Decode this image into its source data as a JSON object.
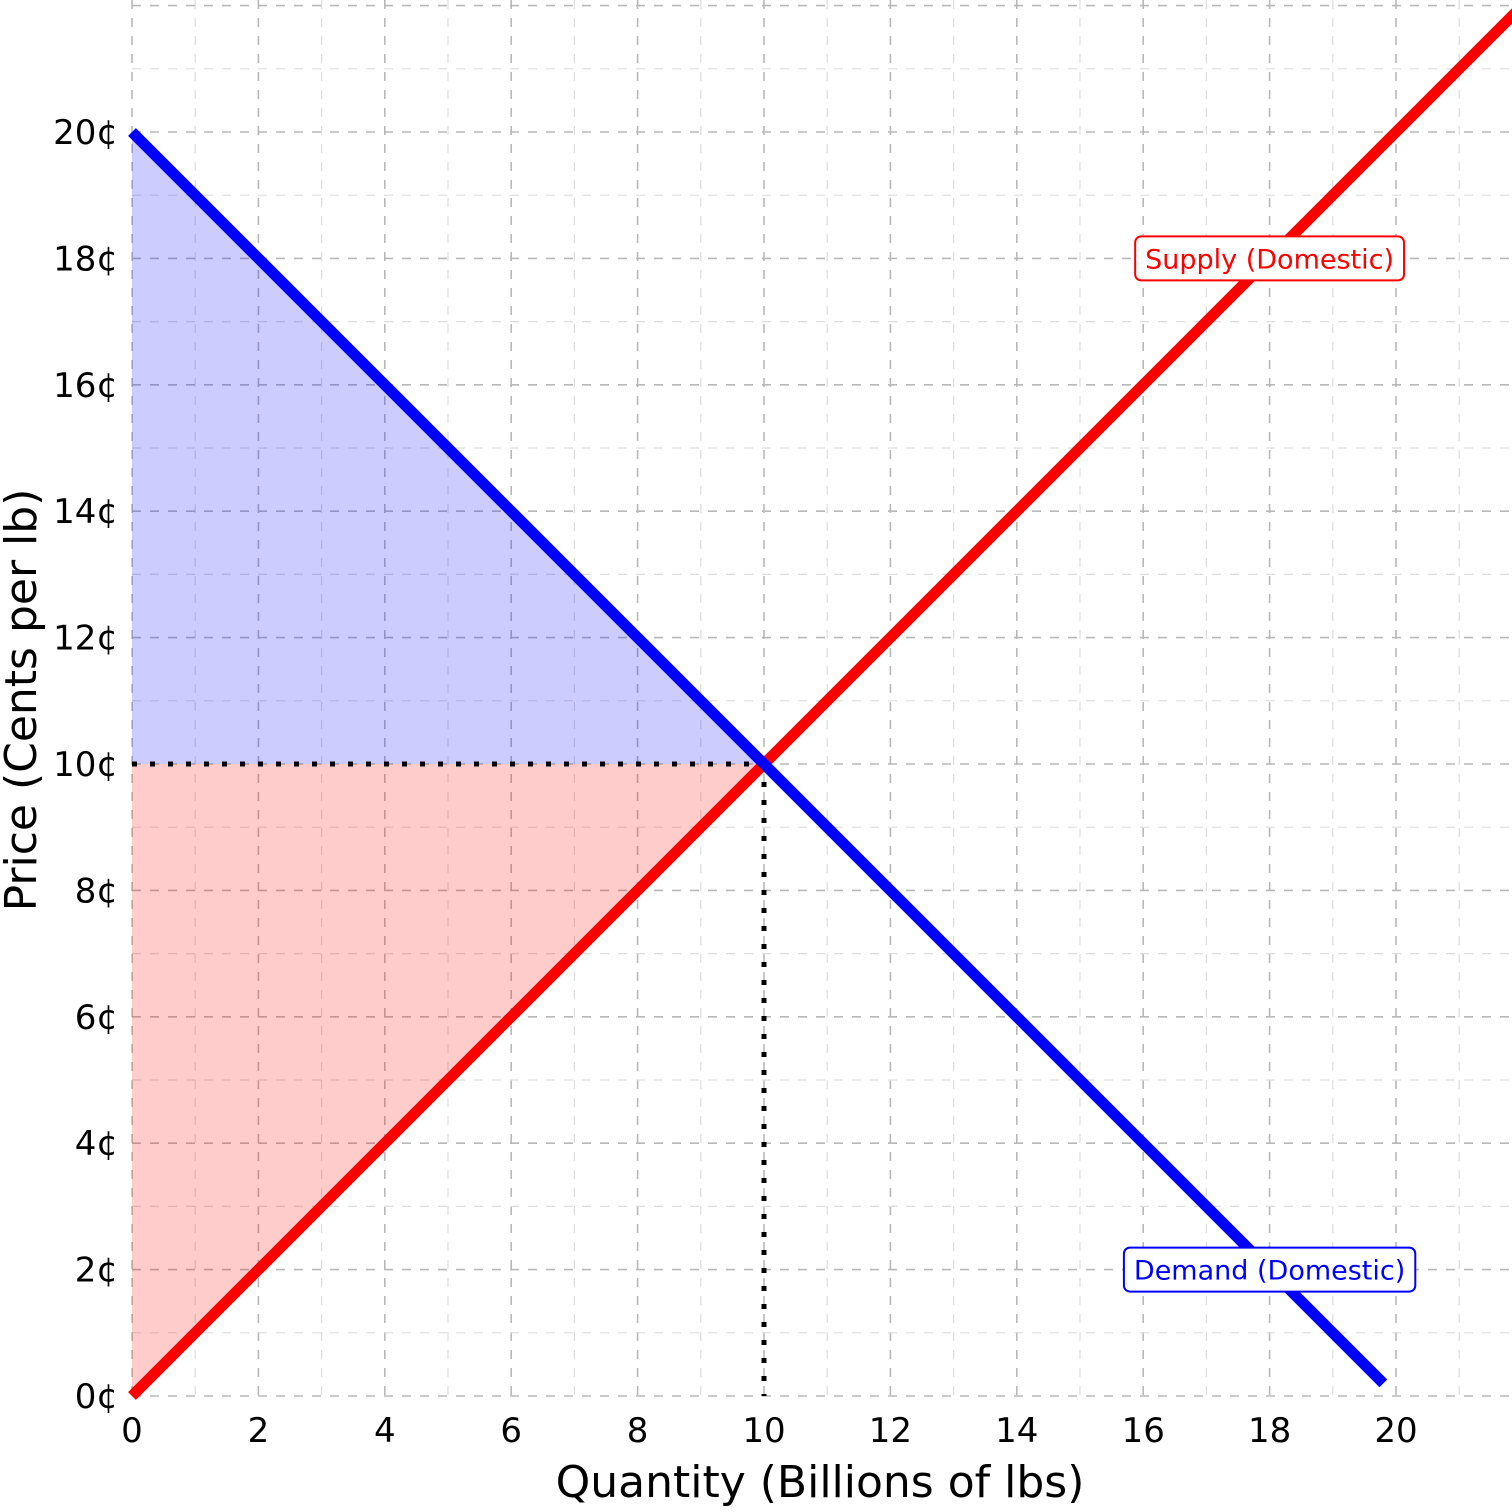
{
  "chart_data": {
    "type": "line",
    "title": "",
    "xlabel": "Quantity (Billions of lbs)",
    "ylabel": "Price (Cents per lb)",
    "xlim": [
      0,
      22
    ],
    "ylim": [
      0,
      22
    ],
    "x_ticks": [
      0,
      2,
      4,
      6,
      8,
      10,
      12,
      14,
      16,
      18,
      20
    ],
    "x_tick_labels": [
      "0",
      "2",
      "4",
      "6",
      "8",
      "10",
      "12",
      "14",
      "16",
      "18",
      "20"
    ],
    "y_ticks": [
      0,
      2,
      4,
      6,
      8,
      10,
      12,
      14,
      16,
      18,
      20
    ],
    "y_tick_labels": [
      "0¢",
      "2¢",
      "4¢",
      "6¢",
      "8¢",
      "10¢",
      "12¢",
      "14¢",
      "16¢",
      "18¢",
      "20¢"
    ],
    "grid": true,
    "series": [
      {
        "name": "Supply (Domestic)",
        "color": "#ff0000",
        "x": [
          0,
          22
        ],
        "y": [
          0,
          22
        ]
      },
      {
        "name": "Demand (Domestic)",
        "color": "#0000ff",
        "x": [
          0,
          19.8
        ],
        "y": [
          20,
          0.2
        ]
      }
    ],
    "labels": [
      {
        "text": "Supply (Domestic)",
        "x": 18,
        "y": 18,
        "color": "#ff0000"
      },
      {
        "text": "Demand (Domestic)",
        "x": 18,
        "y": 2,
        "color": "#0000ff"
      }
    ],
    "equilibrium": {
      "x": 10,
      "y": 10
    },
    "consumer_surplus": {
      "color": "#0000ff",
      "opacity": 0.2,
      "points": [
        [
          0,
          20
        ],
        [
          10,
          10
        ],
        [
          0,
          10
        ]
      ]
    },
    "producer_surplus": {
      "color": "#ff0000",
      "opacity": 0.2,
      "points": [
        [
          0,
          0
        ],
        [
          10,
          10
        ],
        [
          0,
          10
        ]
      ]
    }
  }
}
